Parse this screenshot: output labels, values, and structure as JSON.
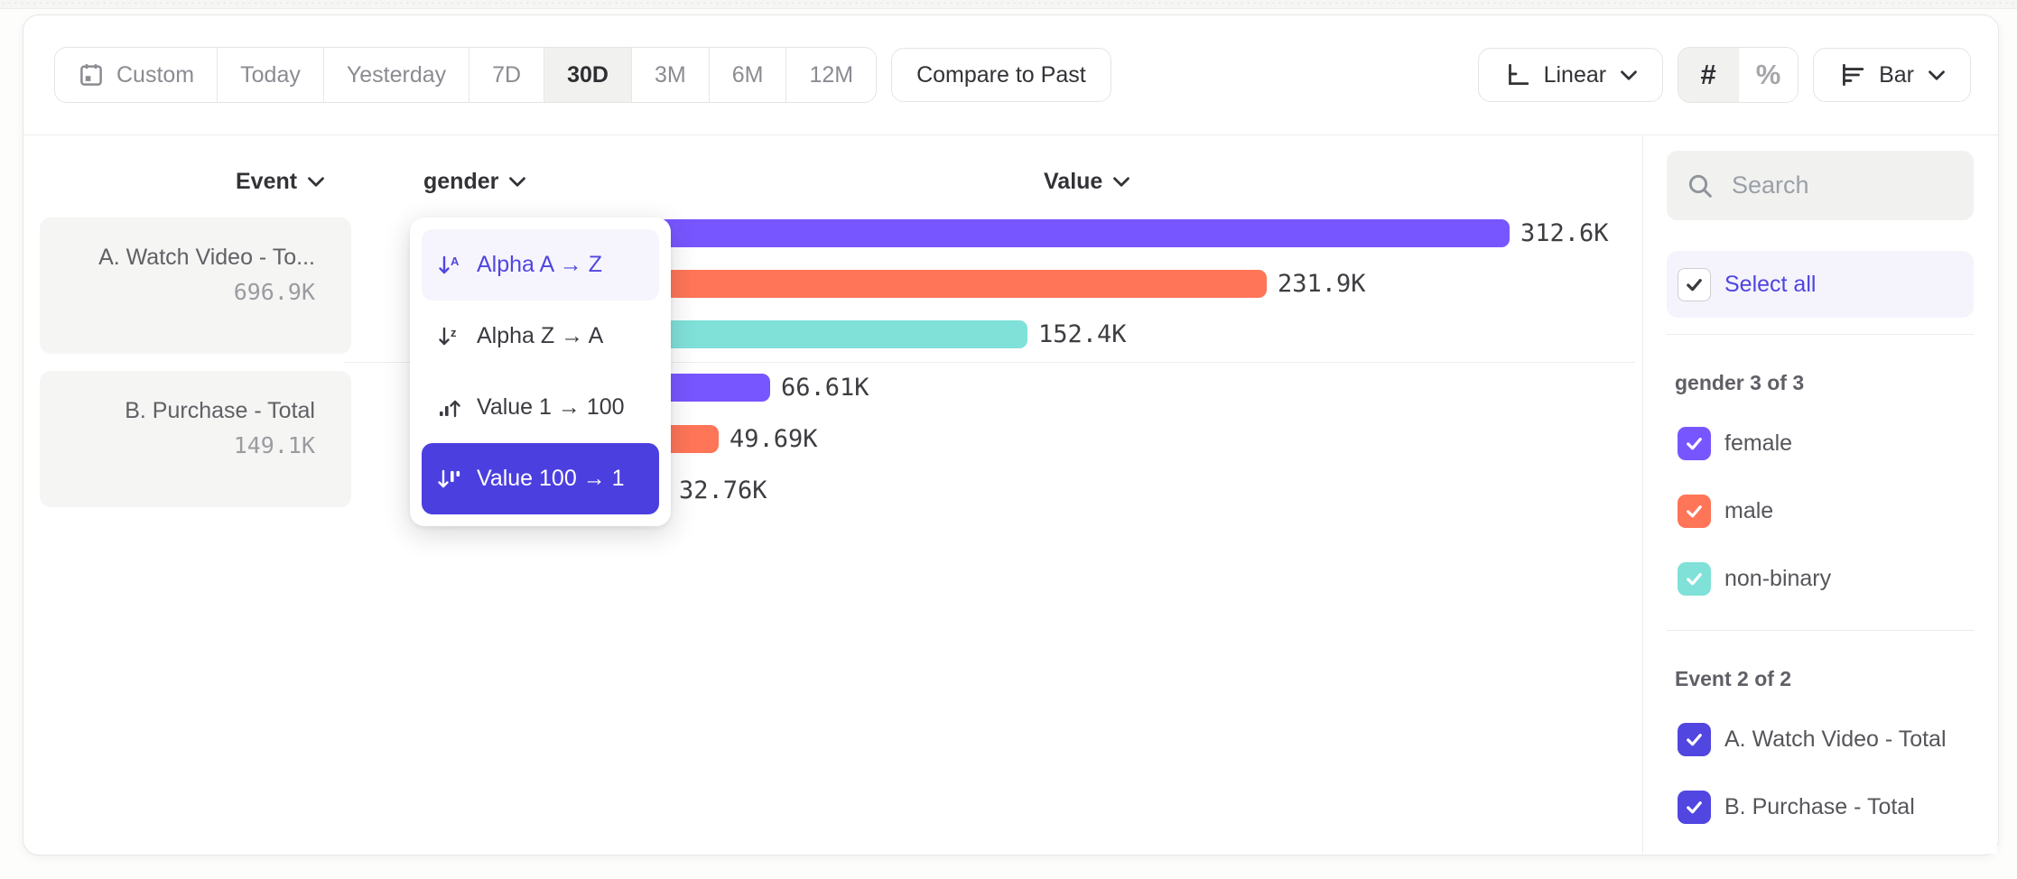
{
  "toolbar": {
    "date_ranges": [
      {
        "label": "Custom",
        "icon": "calendar",
        "selected": false
      },
      {
        "label": "Today",
        "selected": false
      },
      {
        "label": "Yesterday",
        "selected": false
      },
      {
        "label": "7D",
        "selected": false
      },
      {
        "label": "30D",
        "selected": true
      },
      {
        "label": "3M",
        "selected": false
      },
      {
        "label": "6M",
        "selected": false
      },
      {
        "label": "12M",
        "selected": false
      }
    ],
    "compare_label": "Compare to Past",
    "scale_label": "Linear",
    "number_format_label": "#",
    "percent_format_label": "%",
    "chart_type_label": "Bar"
  },
  "columns": {
    "event_label": "Event",
    "breakdown_label": "gender",
    "value_label": "Value"
  },
  "event_list": [
    {
      "name": "A. Watch Video - To...",
      "value": "696.9K"
    },
    {
      "name": "B. Purchase - Total",
      "value": "149.1K"
    }
  ],
  "sort_menu": {
    "items": [
      {
        "key": "alpha-a-z",
        "label": "Alpha A → Z",
        "icon": "sort-az",
        "state": "hover"
      },
      {
        "key": "alpha-z-a",
        "label": "Alpha Z → A",
        "icon": "sort-za",
        "state": "normal"
      },
      {
        "key": "value-1-100",
        "label": "Value 1 → 100",
        "icon": "sort-asc",
        "state": "normal"
      },
      {
        "key": "value-100-1",
        "label": "Value 100 → 1",
        "icon": "sort-desc",
        "state": "selected"
      }
    ]
  },
  "chart_data": {
    "type": "bar",
    "orientation": "horizontal",
    "scale": "Linear",
    "breakdown": "gender",
    "unit": "K",
    "categories": [
      "female",
      "male",
      "non-binary"
    ],
    "colors": {
      "female": "#7856FF",
      "male": "#FF7557",
      "non-binary": "#80E1D9"
    },
    "series": [
      {
        "name": "A. Watch Video - Total",
        "total": "696.9K",
        "values": [
          312.6,
          231.9,
          152.4
        ],
        "labels": [
          "312.6K",
          "231.9K",
          "152.4K"
        ]
      },
      {
        "name": "B. Purchase - Total",
        "total": "149.1K",
        "values": [
          66.61,
          49.69,
          32.76
        ],
        "labels": [
          "66.61K",
          "49.69K",
          "32.76K"
        ]
      }
    ],
    "value_axis": "Value"
  },
  "sidebar": {
    "search_placeholder": "Search",
    "select_all_label": "Select all",
    "sections": [
      {
        "title": "gender 3 of 3",
        "items": [
          {
            "label": "female",
            "color": "#7856FF",
            "checked": true
          },
          {
            "label": "male",
            "color": "#FF7557",
            "checked": true
          },
          {
            "label": "non-binary",
            "color": "#80E1D9",
            "checked": true
          }
        ]
      },
      {
        "title": "Event 2 of 2",
        "items": [
          {
            "label": "A. Watch Video - Total",
            "color": "#5246E0",
            "checked": true
          },
          {
            "label": "B. Purchase - Total",
            "color": "#5246E0",
            "checked": true
          }
        ]
      }
    ]
  },
  "colors": {
    "accent": "#4B3FE0",
    "purple": "#7856FF",
    "orange": "#FF7557",
    "teal": "#80E1D9"
  }
}
